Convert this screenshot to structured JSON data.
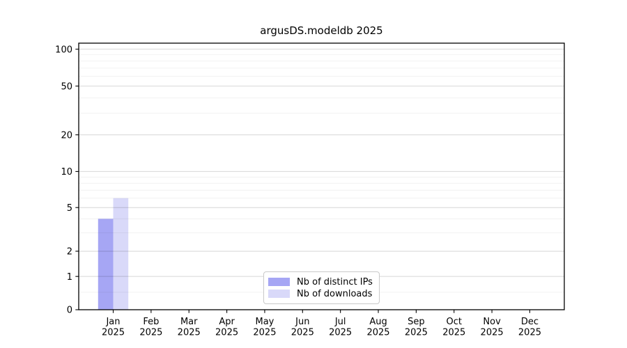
{
  "chart_data": {
    "type": "bar",
    "title": "argusDS.modeldb 2025",
    "xlabel": "",
    "ylabel": "",
    "categories": [
      "Jan",
      "Feb",
      "Mar",
      "Apr",
      "May",
      "Jun",
      "Jul",
      "Aug",
      "Sep",
      "Oct",
      "Nov",
      "Dec"
    ],
    "x_tick_second_line": "2025",
    "series": [
      {
        "name": "Nb of distinct IPs",
        "color": "#a6a6f4",
        "values": [
          4,
          0,
          0,
          0,
          0,
          0,
          0,
          0,
          0,
          0,
          0,
          0
        ]
      },
      {
        "name": "Nb of downloads",
        "color": "#d9d9f9",
        "values": [
          6,
          0,
          0,
          0,
          0,
          0,
          0,
          0,
          0,
          0,
          0,
          0
        ]
      }
    ],
    "yscale": "asinh",
    "linear_width": 1.5,
    "ylim": [
      0,
      112
    ],
    "yticks": [
      0,
      1,
      2,
      5,
      10,
      20,
      50,
      100
    ],
    "minor_yticks": [
      0.5,
      3,
      4,
      6,
      7,
      8,
      9,
      30,
      40,
      60,
      70,
      80,
      90
    ],
    "grid": "horizontal",
    "legend_position": "lower center"
  },
  "colors": {
    "background": "#ffffff",
    "axis": "#000000",
    "tick_text": "#000000",
    "grid_major": "rgba(0,0,0,0.16)",
    "grid_minor": "rgba(0,0,0,0.06)",
    "legend_border": "#c9c9c9",
    "bar_distinct_ips": "#a6a6f4",
    "bar_downloads": "#d9d9f9"
  }
}
